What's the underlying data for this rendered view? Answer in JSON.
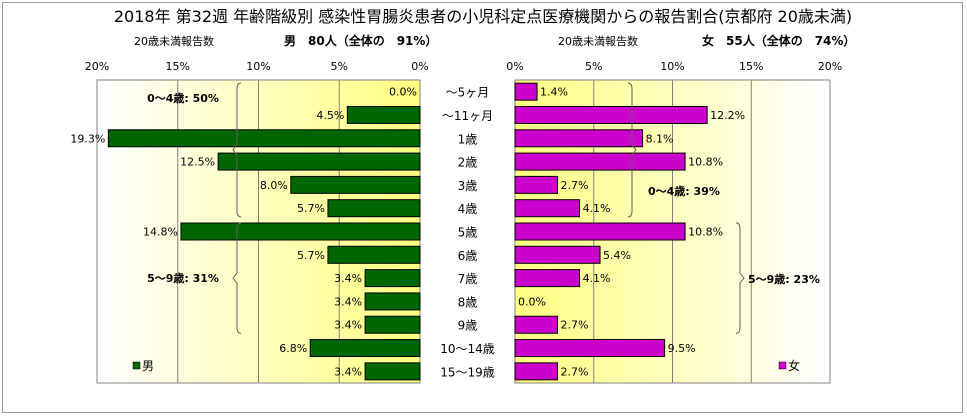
{
  "chart_data": {
    "type": "bar",
    "title": "2018年 第32週 年齢階級別 感染性胃腸炎患者の小児科定点医療機関からの報告割合(京都府 20歳未満)",
    "categories": [
      "～5ヶ月",
      "～11ヶ月",
      "1歳",
      "2歳",
      "3歳",
      "4歳",
      "5歳",
      "6歳",
      "7歳",
      "8歳",
      "9歳",
      "10～14歳",
      "15～19歳"
    ],
    "xlim": [
      0,
      20
    ],
    "xticks": [
      "0%",
      "5%",
      "10%",
      "15%",
      "20%"
    ],
    "grid": true,
    "series": [
      {
        "name": "男",
        "caption_left": "20歳未満報告数",
        "caption_right": "男　80人（全体の　91%）",
        "color": "#006600",
        "values": [
          0.0,
          4.5,
          19.3,
          12.5,
          8.0,
          5.7,
          14.8,
          5.7,
          3.4,
          3.4,
          3.4,
          6.8,
          3.4
        ],
        "labels": [
          "0.0%",
          "4.5%",
          "19.3%",
          "12.5%",
          "8.0%",
          "5.7%",
          "14.8%",
          "5.7%",
          "3.4%",
          "3.4%",
          "3.4%",
          "6.8%",
          "3.4%"
        ],
        "brackets": [
          {
            "text": "0～4歳: 50%",
            "from": 0,
            "to": 5
          },
          {
            "text": "5～9歳: 31%",
            "from": 6,
            "to": 10
          }
        ]
      },
      {
        "name": "女",
        "caption_left": "20歳未満報告数",
        "caption_right": "女　55人（全体の　74%）",
        "color": "#cc00cc",
        "values": [
          1.4,
          12.2,
          8.1,
          10.8,
          2.7,
          4.1,
          10.8,
          5.4,
          4.1,
          0.0,
          2.7,
          9.5,
          2.7
        ],
        "labels": [
          "1.4%",
          "12.2%",
          "8.1%",
          "10.8%",
          "2.7%",
          "4.1%",
          "10.8%",
          "5.4%",
          "4.1%",
          "0.0%",
          "2.7%",
          "9.5%",
          "2.7%"
        ],
        "brackets": [
          {
            "text": "0～4歳: 39%",
            "from": 0,
            "to": 5
          },
          {
            "text": "5～9歳: 23%",
            "from": 6,
            "to": 10
          }
        ]
      }
    ]
  }
}
